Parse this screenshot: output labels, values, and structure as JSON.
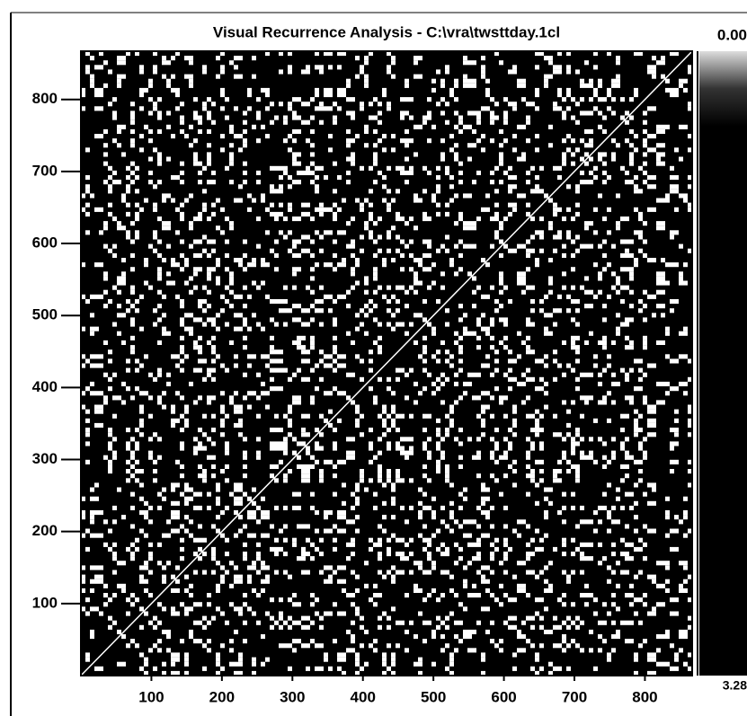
{
  "chart_data": {
    "type": "recurrence",
    "title": "Visual Recurrence Analysis  -  C:\\vra\\twsttday.1cl",
    "xlim": [
      0,
      867
    ],
    "ylim": [
      0,
      867
    ],
    "xticks": [
      100,
      200,
      300,
      400,
      500,
      600,
      700,
      800
    ],
    "yticks": [
      100,
      200,
      300,
      400,
      500,
      600,
      700,
      800
    ],
    "colorbar": {
      "ticks": [
        {
          "value": 0,
          "label": "0.00"
        },
        3.28
      ]
    }
  }
}
